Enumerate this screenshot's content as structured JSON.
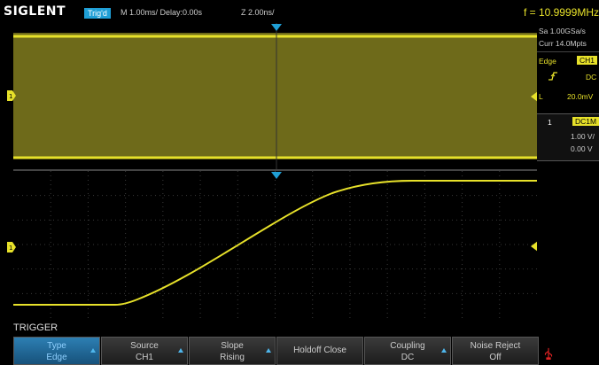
{
  "header": {
    "logo": "SIGLENT",
    "trigger_status": "Trig'd",
    "timebase": "M 1.00ms/ Delay:0.00s",
    "zoom": "Z 2.00ns/",
    "frequency": "f = 10.9999MHz"
  },
  "acquisition": {
    "sample_rate": "Sa 1.00GSa/s",
    "memory_depth": "Curr 14.0Mpts"
  },
  "trigger_panel": {
    "type": "Edge",
    "source": "CH1",
    "coupling": "DC",
    "level_label": "L",
    "level": "20.0mV"
  },
  "channel_panel": {
    "channel": "1",
    "coupling": "DC1M",
    "scale": "1.00 V/",
    "offset": "0.00 V"
  },
  "menu": {
    "title": "TRIGGER",
    "buttons": [
      {
        "title": "Type",
        "value": "Edge"
      },
      {
        "title": "Source",
        "value": "CH1"
      },
      {
        "title": "Slope",
        "value": "Rising"
      },
      {
        "title": "Holdoff Close",
        "value": ""
      },
      {
        "title": "Coupling",
        "value": "DC"
      },
      {
        "title": "Noise Reject",
        "value": "Off"
      }
    ]
  },
  "colors": {
    "channel1": "#e7e12a",
    "trigger_marker": "#1f9fd6",
    "grid": "#3a3a3a",
    "active_button": "#2d7fb3"
  },
  "icons": [
    "trigger-position-icon",
    "channel-1-level-icon",
    "trigger-level-icon",
    "rising-edge-icon",
    "usb-icon"
  ]
}
